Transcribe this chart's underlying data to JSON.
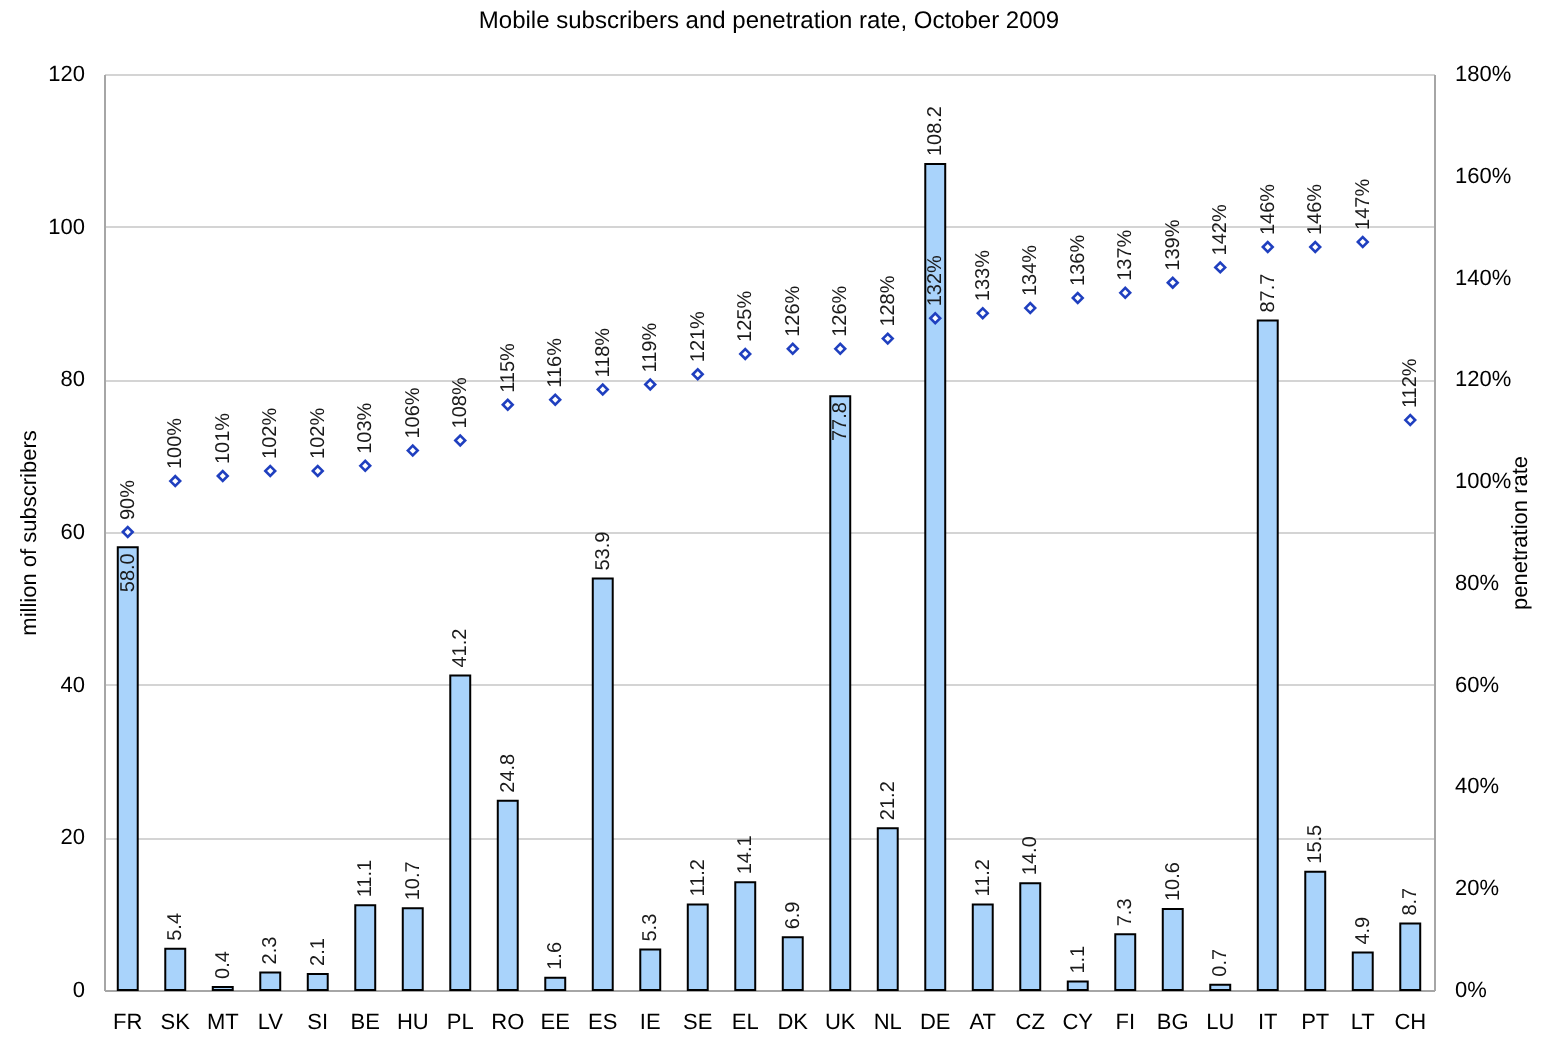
{
  "chart_data": {
    "type": "bar",
    "title": "Mobile subscribers and penetration rate, October 2009",
    "ylabel": "million of subscribers",
    "y2label": "penetration rate",
    "categories": [
      "FR",
      "SK",
      "MT",
      "LV",
      "SI",
      "BE",
      "HU",
      "PL",
      "RO",
      "EE",
      "ES",
      "IE",
      "SE",
      "EL",
      "DK",
      "UK",
      "NL",
      "DE",
      "AT",
      "CZ",
      "CY",
      "FI",
      "BG",
      "LU",
      "IT",
      "PT",
      "LT",
      "CH"
    ],
    "series": [
      {
        "color": "#a9d3fb",
        "values": [
          58.0,
          5.4,
          0.4,
          2.3,
          2.1,
          11.1,
          10.7,
          41.2,
          24.8,
          1.6,
          53.9,
          5.3,
          11.2,
          14.1,
          6.9,
          77.8,
          21.2,
          108.2,
          11.2,
          14.0,
          1.1,
          7.3,
          10.6,
          0.7,
          87.7,
          15.5,
          4.9,
          8.7
        ],
        "value_labels": [
          "58.0",
          "5.4",
          "0.4",
          "2.3",
          "2.1",
          "11.1",
          "10.7",
          "41.2",
          "24.8",
          "1.6",
          "53.9",
          "5.3",
          "11.2",
          "14.1",
          "6.9",
          "77.8",
          "21.2",
          "108.2",
          "11.2",
          "14.0",
          "1.1",
          "7.3",
          "10.6",
          "0.7",
          "87.7",
          "15.5",
          "4.9",
          "8.7"
        ]
      },
      {
        "type": "scatter",
        "axis": "y2",
        "color": "#1f3fbf",
        "marker": "diamond",
        "values": [
          90,
          100,
          101,
          102,
          102,
          103,
          106,
          108,
          115,
          116,
          118,
          119,
          121,
          125,
          126,
          126,
          128,
          132,
          133,
          134,
          136,
          137,
          139,
          142,
          146,
          146,
          147,
          112
        ],
        "value_labels": [
          "90%",
          "100%",
          "101%",
          "102%",
          "102%",
          "103%",
          "106%",
          "108%",
          "115%",
          "116%",
          "118%",
          "119%",
          "121%",
          "125%",
          "126%",
          "126%",
          "128%",
          "132%",
          "133%",
          "134%",
          "136%",
          "137%",
          "139%",
          "142%",
          "146%",
          "146%",
          "147%",
          "112%"
        ]
      }
    ],
    "ylim": [
      0,
      120
    ],
    "yticks": [
      0,
      20,
      40,
      60,
      80,
      100,
      120
    ],
    "y2lim": [
      0,
      180
    ],
    "y2ticks": [
      {
        "value": 0,
        "label": "0%"
      },
      {
        "value": 20,
        "label": "20%"
      },
      {
        "value": 40,
        "label": "40%"
      },
      {
        "value": 60,
        "label": "60%"
      },
      {
        "value": 80,
        "label": "80%"
      },
      {
        "value": 100,
        "label": "100%"
      },
      {
        "value": 120,
        "label": "120%"
      },
      {
        "value": 140,
        "label": "140%"
      },
      {
        "value": 160,
        "label": "160%"
      },
      {
        "value": 180,
        "label": "180%"
      }
    ],
    "grid": "y"
  }
}
